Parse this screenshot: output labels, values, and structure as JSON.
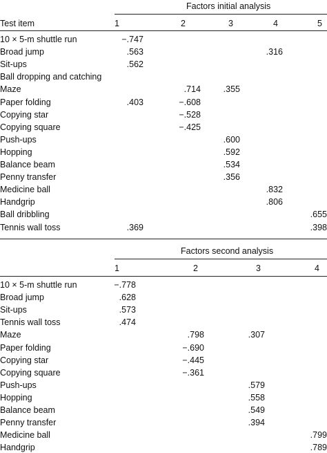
{
  "table1": {
    "title": "Factors initial analysis",
    "test_item_header": "Test item",
    "factor_headers": [
      "1",
      "2",
      "3",
      "4",
      "5"
    ],
    "rows": [
      {
        "item": "10 × 5-m shuttle run",
        "values": [
          "−.747",
          "",
          "",
          "",
          ""
        ]
      },
      {
        "item": "Broad jump",
        "values": [
          ".563",
          "",
          "",
          ".316",
          ""
        ]
      },
      {
        "item": "Sit-ups",
        "values": [
          ".562",
          "",
          "",
          "",
          ""
        ]
      },
      {
        "item": "Ball dropping and catching",
        "values": [
          "",
          "",
          "",
          "",
          ""
        ]
      },
      {
        "item": "Maze",
        "values": [
          "",
          ".714",
          ".355",
          "",
          ""
        ]
      },
      {
        "item": "Paper folding",
        "values": [
          ".403",
          "−.608",
          "",
          "",
          ""
        ]
      },
      {
        "item": "Copying star",
        "values": [
          "",
          "−.528",
          "",
          "",
          ""
        ]
      },
      {
        "item": "Copying square",
        "values": [
          "",
          "−.425",
          "",
          "",
          ""
        ]
      },
      {
        "item": "Push-ups",
        "values": [
          "",
          "",
          ".600",
          "",
          ""
        ]
      },
      {
        "item": "Hopping",
        "values": [
          "",
          "",
          ".592",
          "",
          ""
        ]
      },
      {
        "item": "Balance beam",
        "values": [
          "",
          "",
          ".534",
          "",
          ""
        ]
      },
      {
        "item": "Penny transfer",
        "values": [
          "",
          "",
          ".356",
          "",
          ""
        ]
      },
      {
        "item": "Medicine ball",
        "values": [
          "",
          "",
          "",
          ".832",
          ""
        ]
      },
      {
        "item": "Handgrip",
        "values": [
          "",
          "",
          "",
          ".806",
          ""
        ]
      },
      {
        "item": "Ball dribbling",
        "values": [
          "",
          "",
          "",
          "",
          ".655"
        ]
      },
      {
        "item": "Tennis wall toss",
        "values": [
          ".369",
          "",
          "",
          "",
          ".398"
        ]
      }
    ]
  },
  "table2": {
    "title": "Factors second analysis",
    "factor_headers": [
      "1",
      "2",
      "3",
      "4"
    ],
    "rows": [
      {
        "item": "10 × 5-m shuttle run",
        "values": [
          "−.778",
          "",
          "",
          ""
        ]
      },
      {
        "item": "Broad jump",
        "values": [
          ".628",
          "",
          "",
          ""
        ]
      },
      {
        "item": "Sit-ups",
        "values": [
          ".573",
          "",
          "",
          ""
        ]
      },
      {
        "item": "Tennis wall toss",
        "values": [
          ".474",
          "",
          "",
          ""
        ]
      },
      {
        "item": "Maze",
        "values": [
          "",
          ".798",
          ".307",
          ""
        ]
      },
      {
        "item": "Paper folding",
        "values": [
          "",
          "−.690",
          "",
          ""
        ]
      },
      {
        "item": "Copying star",
        "values": [
          "",
          "−.445",
          "",
          ""
        ]
      },
      {
        "item": "Copying square",
        "values": [
          "",
          "−.361",
          "",
          ""
        ]
      },
      {
        "item": "Push-ups",
        "values": [
          "",
          "",
          ".579",
          ""
        ]
      },
      {
        "item": "Hopping",
        "values": [
          "",
          "",
          ".558",
          ""
        ]
      },
      {
        "item": "Balance beam",
        "values": [
          "",
          "",
          ".549",
          ""
        ]
      },
      {
        "item": "Penny transfer",
        "values": [
          "",
          "",
          ".394",
          ""
        ]
      },
      {
        "item": "Medicine ball",
        "values": [
          "",
          "",
          "",
          ".799"
        ]
      },
      {
        "item": "Handgrip",
        "values": [
          "",
          "",
          "",
          ".789"
        ]
      }
    ]
  }
}
